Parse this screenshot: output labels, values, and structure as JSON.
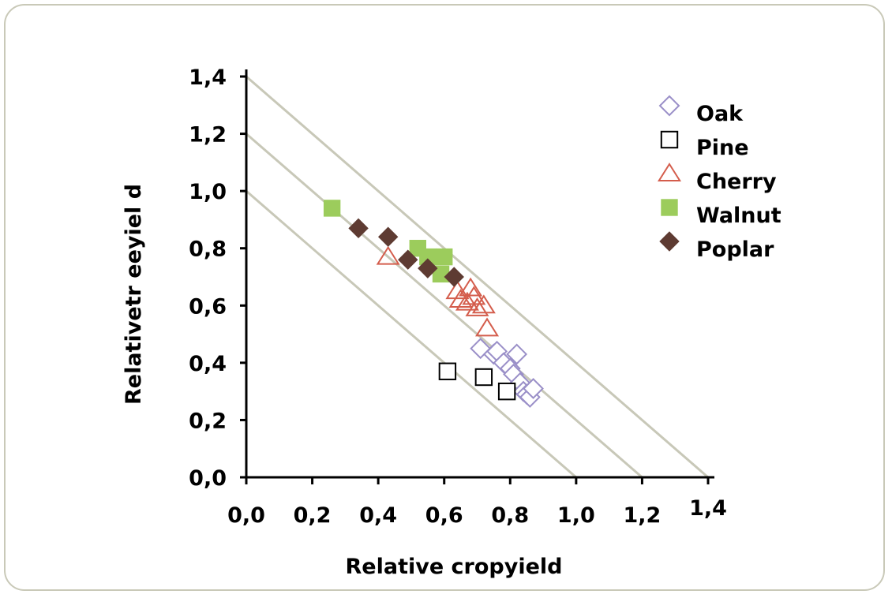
{
  "chart_data": {
    "type": "scatter",
    "title": "",
    "xlabel": "Relative cropyield",
    "ylabel": "Relativetr eeyiel d",
    "xlim": [
      0,
      1.4
    ],
    "ylim": [
      0,
      1.4
    ],
    "x_ticks": [
      "0,0",
      "0,2",
      "0,4",
      "0,6",
      "0,8",
      "1,0",
      "1,2",
      "1,4"
    ],
    "y_ticks": [
      "0,0",
      "0,2",
      "0,4",
      "0,6",
      "0,8",
      "1,0",
      "1,2",
      "1,4"
    ],
    "grid": false,
    "legend_position": "top-right",
    "reference_lines": [
      {
        "intercept": 1.0
      },
      {
        "intercept": 1.2
      },
      {
        "intercept": 1.4
      }
    ],
    "reference_line_color": "#c8c8b8",
    "series": [
      {
        "name": "Oak",
        "marker": "diamond-open",
        "color": "#9a8fc8",
        "points": [
          [
            0.71,
            0.45
          ],
          [
            0.75,
            0.43
          ],
          [
            0.76,
            0.44
          ],
          [
            0.78,
            0.4
          ],
          [
            0.8,
            0.38
          ],
          [
            0.81,
            0.36
          ],
          [
            0.82,
            0.43
          ],
          [
            0.83,
            0.33
          ],
          [
            0.84,
            0.3
          ],
          [
            0.85,
            0.29
          ],
          [
            0.86,
            0.28
          ],
          [
            0.87,
            0.31
          ]
        ]
      },
      {
        "name": "Pine",
        "marker": "square-open",
        "color": "#000000",
        "points": [
          [
            0.61,
            0.37
          ],
          [
            0.72,
            0.35
          ],
          [
            0.79,
            0.3
          ]
        ]
      },
      {
        "name": "Cherry",
        "marker": "triangle-open",
        "color": "#d45d4c",
        "points": [
          [
            0.43,
            0.77
          ],
          [
            0.64,
            0.65
          ],
          [
            0.65,
            0.62
          ],
          [
            0.67,
            0.61
          ],
          [
            0.68,
            0.66
          ],
          [
            0.69,
            0.63
          ],
          [
            0.7,
            0.59
          ],
          [
            0.72,
            0.6
          ],
          [
            0.73,
            0.52
          ]
        ]
      },
      {
        "name": "Walnut",
        "marker": "square-filled",
        "color": "#9ccc5c",
        "points": [
          [
            0.26,
            0.94
          ],
          [
            0.52,
            0.8
          ],
          [
            0.55,
            0.77
          ],
          [
            0.59,
            0.71
          ],
          [
            0.6,
            0.77
          ]
        ]
      },
      {
        "name": "Poplar",
        "marker": "diamond-filled",
        "color": "#5e3b32",
        "points": [
          [
            0.34,
            0.87
          ],
          [
            0.43,
            0.84
          ],
          [
            0.49,
            0.76
          ],
          [
            0.55,
            0.73
          ],
          [
            0.63,
            0.7
          ]
        ]
      }
    ]
  }
}
